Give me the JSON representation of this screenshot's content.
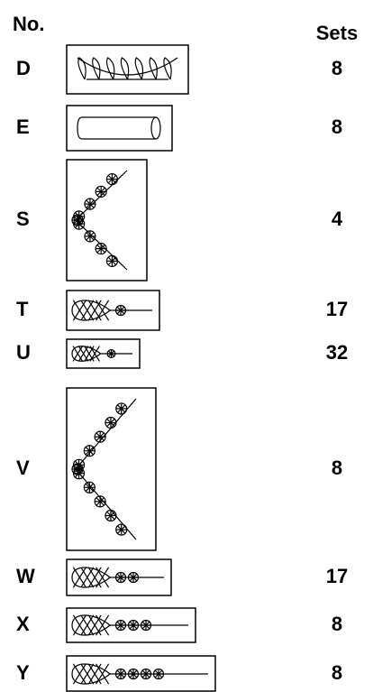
{
  "header": {
    "number": "No.",
    "sets": "Sets"
  },
  "rows": [
    {
      "label": "D",
      "sets": 8
    },
    {
      "label": "E",
      "sets": 8
    },
    {
      "label": "S",
      "sets": 4
    },
    {
      "label": "T",
      "sets": 17
    },
    {
      "label": "U",
      "sets": 32
    },
    {
      "label": "V",
      "sets": 8
    },
    {
      "label": "W",
      "sets": 17
    },
    {
      "label": "X",
      "sets": 8
    },
    {
      "label": "Y",
      "sets": 8
    }
  ]
}
